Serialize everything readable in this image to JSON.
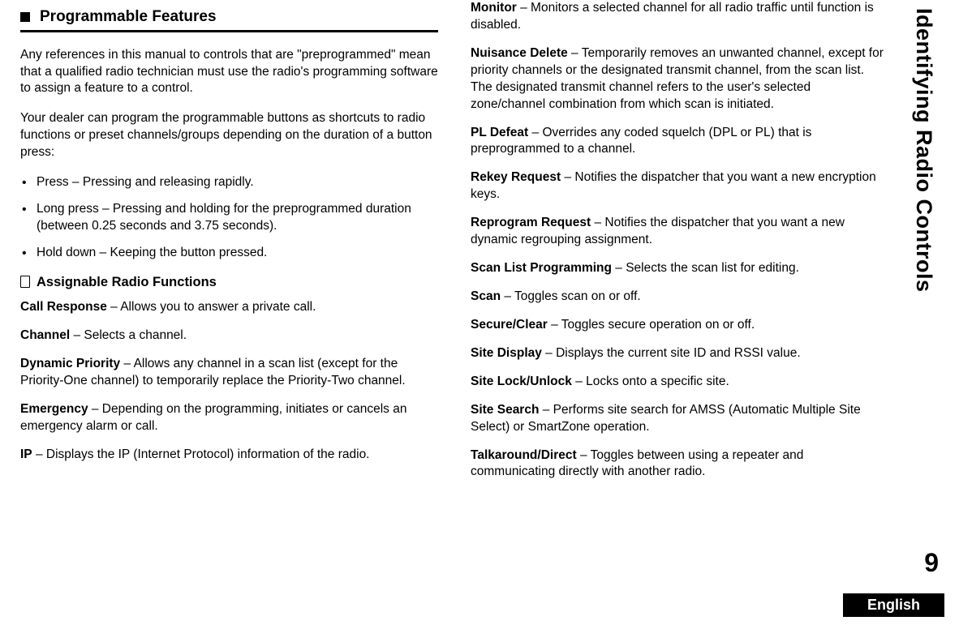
{
  "sideTab": "Identifying Radio Controls",
  "pageNumber": "9",
  "language": "English",
  "section": {
    "title": "Programmable Features",
    "intro1": "Any references in this manual to controls that are \"preprogrammed\" mean that a qualified radio technician must use the radio's programming software to assign a feature to a control.",
    "intro2": "Your dealer can program the programmable buttons as shortcuts to radio functions or preset channels/groups depending on the duration of a button press:",
    "bullets": [
      "Press – Pressing and releasing rapidly.",
      "Long press – Pressing and holding for the preprogrammed duration (between 0.25 seconds and 3.75 seconds).",
      "Hold down – Keeping the button pressed."
    ],
    "subTitle": "Assignable Radio Functions",
    "funcsLeft": [
      {
        "name": "Call Response",
        "desc": " – Allows you to answer a private call."
      },
      {
        "name": "Channel",
        "desc": " – Selects a channel."
      },
      {
        "name": "Dynamic Priority",
        "desc": " – Allows any channel in a scan list (except for the Priority-One channel) to temporarily replace the Priority-Two channel."
      },
      {
        "name": "Emergency",
        "desc": " – Depending on the programming, initiates or cancels an emergency alarm or call."
      },
      {
        "name": "IP",
        "desc": " – Displays the IP (Internet Protocol) information of the radio."
      }
    ],
    "funcsRight": [
      {
        "name": "Monitor",
        "desc": " – Monitors a selected channel for all radio traffic until function is disabled."
      },
      {
        "name": "Nuisance Delete",
        "desc": " – Temporarily removes an unwanted channel, except for priority channels or the designated transmit channel, from the scan list. The designated transmit channel refers to the user's selected zone/channel combination from which scan is initiated."
      },
      {
        "name": "PL Defeat",
        "desc": " – Overrides any coded squelch (DPL or PL) that is preprogrammed to a channel."
      },
      {
        "name": "Rekey Request",
        "desc": " – Notifies the dispatcher that you want a new encryption keys."
      },
      {
        "name": "Reprogram Request",
        "desc": " – Notifies the dispatcher that you want a new dynamic regrouping assignment."
      },
      {
        "name": "Scan List Programming",
        "desc": " – Selects the scan list for editing."
      },
      {
        "name": "Scan",
        "desc": " – Toggles scan on or off."
      },
      {
        "name": "Secure/Clear",
        "desc": " – Toggles secure operation on or off."
      },
      {
        "name": "Site Display",
        "desc": " – Displays the current site ID and RSSI value."
      },
      {
        "name": "Site Lock/Unlock",
        "desc": " – Locks onto a specific site."
      },
      {
        "name": "Site Search",
        "desc": " – Performs site search for AMSS (Automatic Multiple Site Select) or SmartZone operation."
      },
      {
        "name": "Talkaround/Direct",
        "desc": " – Toggles between using a repeater and communicating directly with another radio."
      }
    ]
  }
}
